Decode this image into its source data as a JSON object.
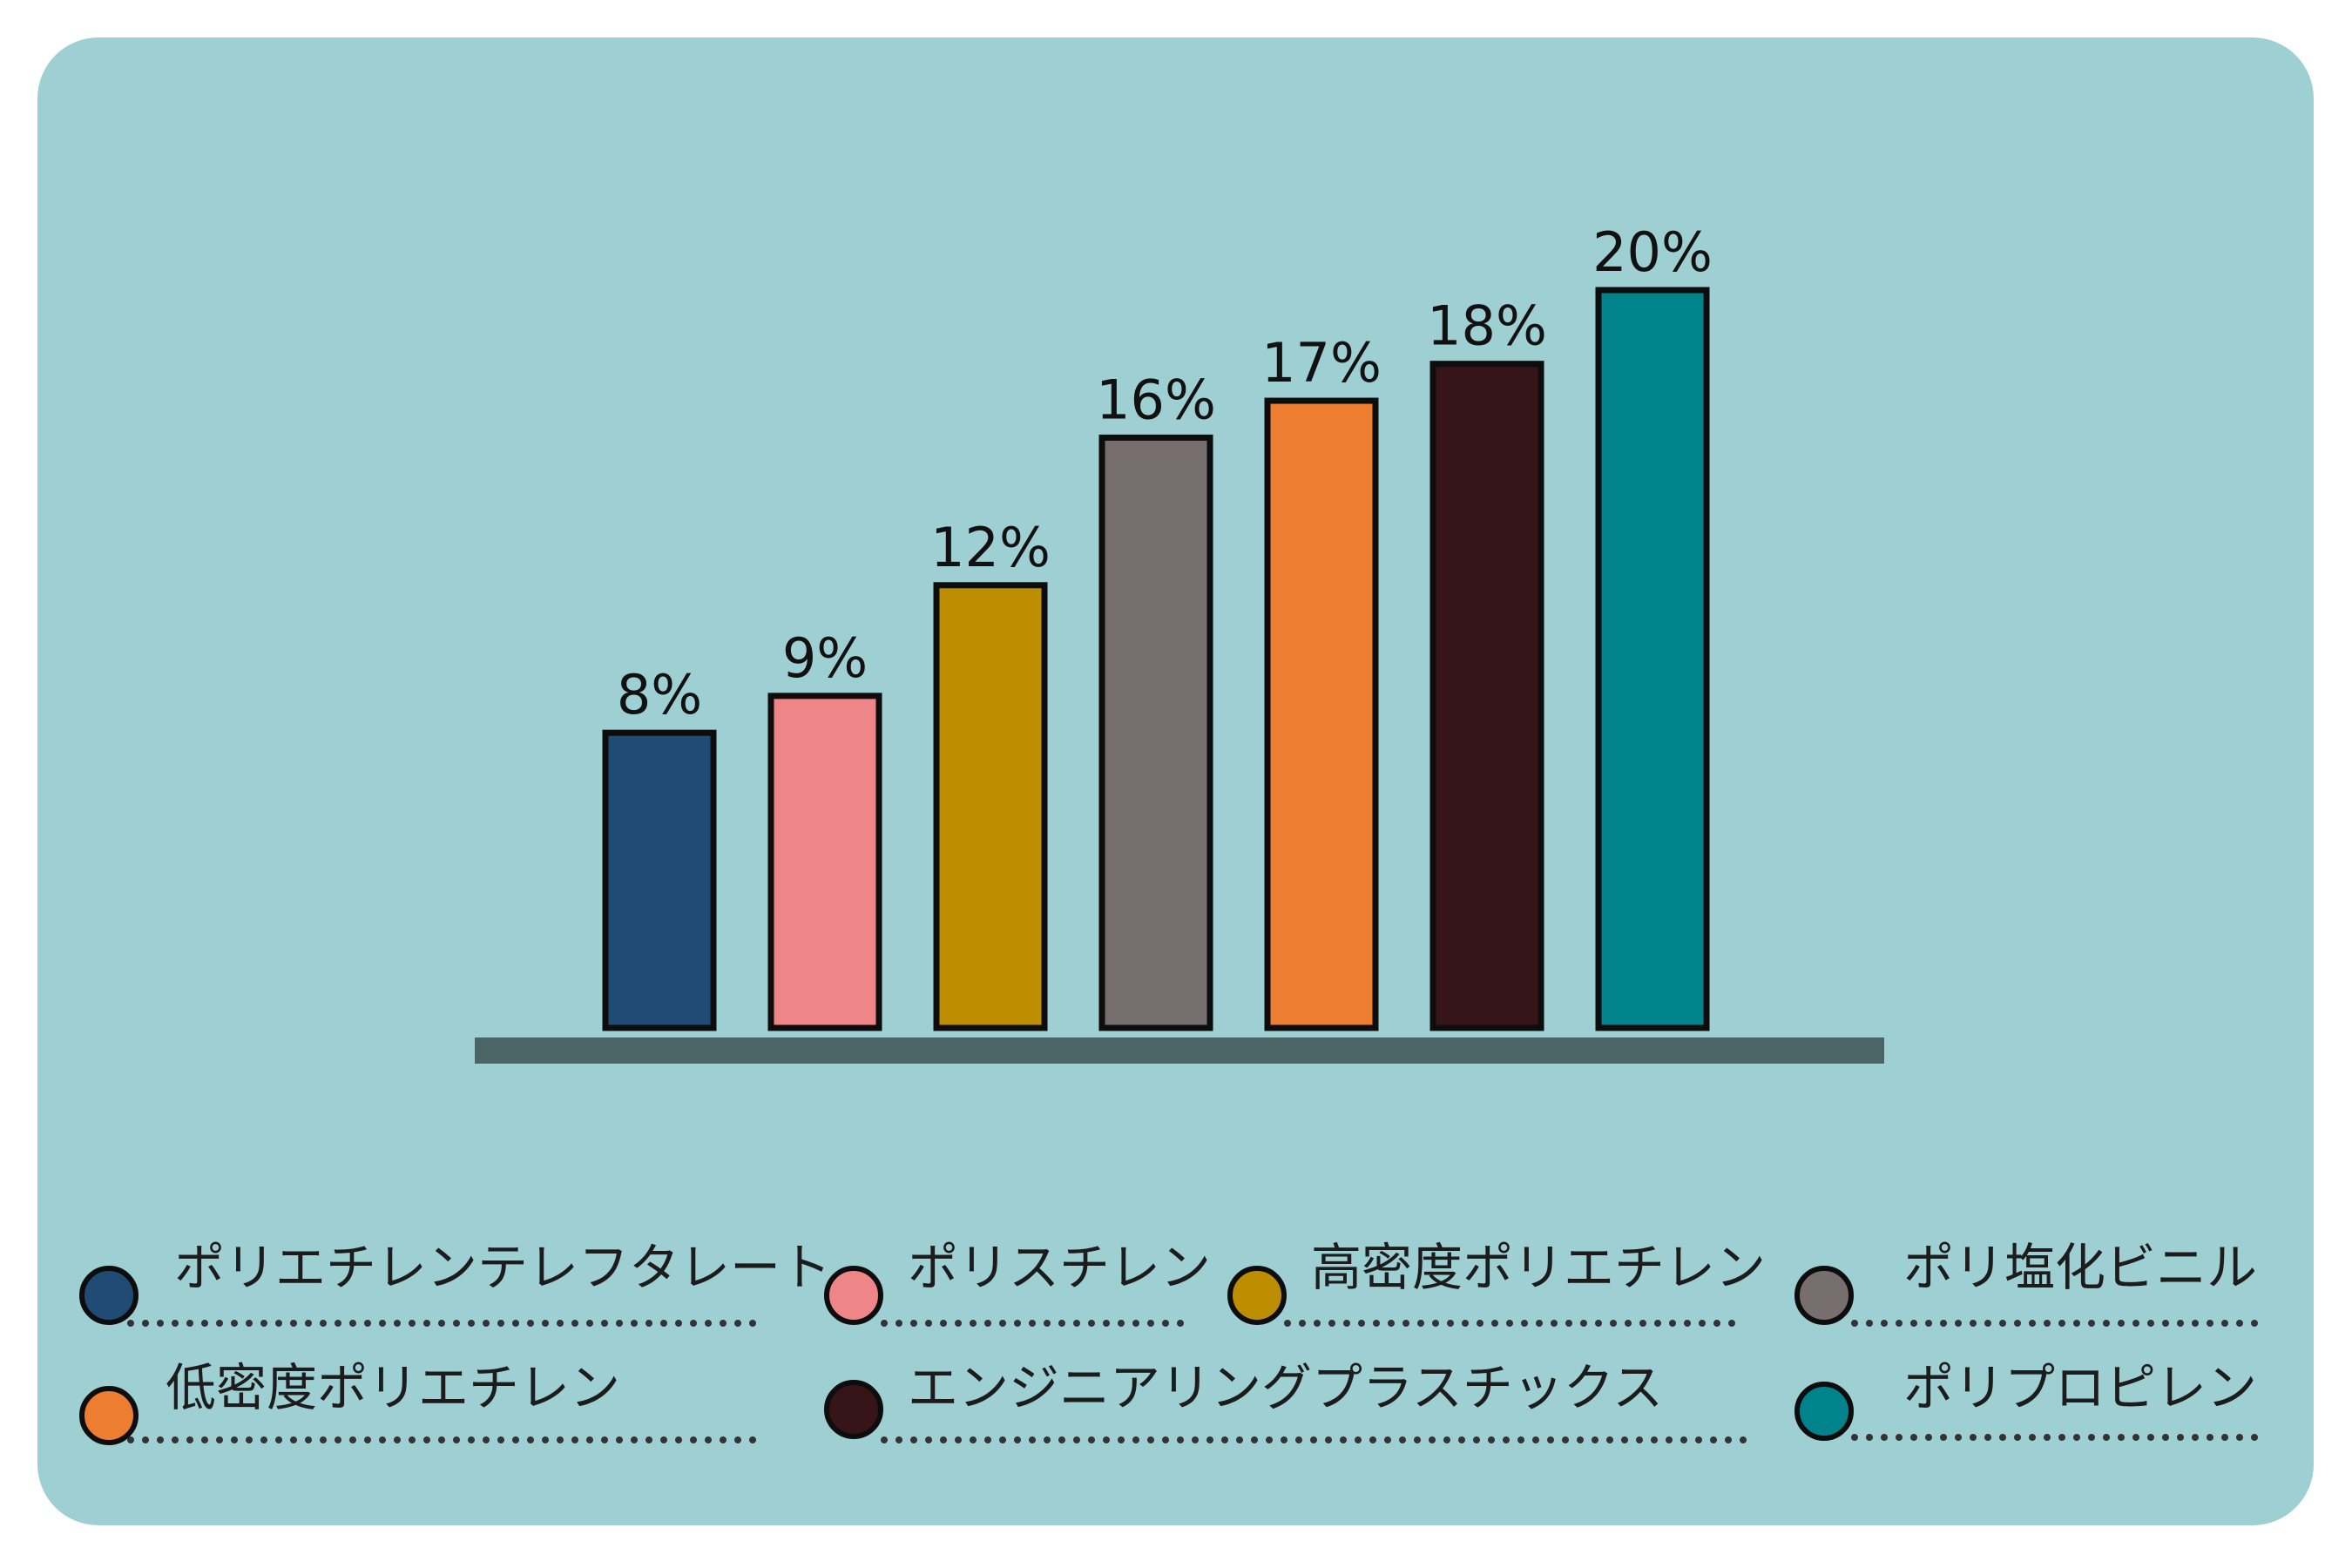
{
  "colors": {
    "background": "#9ecfd3",
    "baseline": "#4b6466",
    "bar_border": "#0d0d0d",
    "dots": "#333333"
  },
  "chart_data": {
    "type": "bar",
    "title": "",
    "xlabel": "",
    "ylabel": "",
    "ylim": [
      0,
      20
    ],
    "grid": false,
    "legend_position": "bottom",
    "categories": [
      "ポリエチレンテレフタレート",
      "ポリスチレン",
      "高密度ポリエチレン",
      "ポリ塩化ビニル",
      "低密度ポリエチレン",
      "エンジニアリングプラスチックス",
      "ポリプロピレン"
    ],
    "values": [
      8,
      9,
      12,
      16,
      17,
      18,
      20
    ],
    "value_labels": [
      "8%",
      "9%",
      "12%",
      "16%",
      "17%",
      "18%",
      "20%"
    ],
    "bar_colors": [
      "#1f4b74",
      "#ee8688",
      "#bd8f00",
      "#776f6f",
      "#ed7d31",
      "#371418",
      "#00838a"
    ],
    "legend": [
      {
        "label": "ポリエチレンテレフタレート",
        "color": "#1f4b74"
      },
      {
        "label": "ポリスチレン",
        "color": "#ee8688"
      },
      {
        "label": "高密度ポリエチレン",
        "color": "#bd8f00"
      },
      {
        "label": "ポリ塩化ビニル",
        "color": "#776f6f"
      },
      {
        "label": "低密度ポリエチレン",
        "color": "#ed7d31"
      },
      {
        "label": "エンジニアリングプラスチックス",
        "color": "#371418"
      },
      {
        "label": "ポリプロピレン",
        "color": "#00838a"
      }
    ]
  }
}
